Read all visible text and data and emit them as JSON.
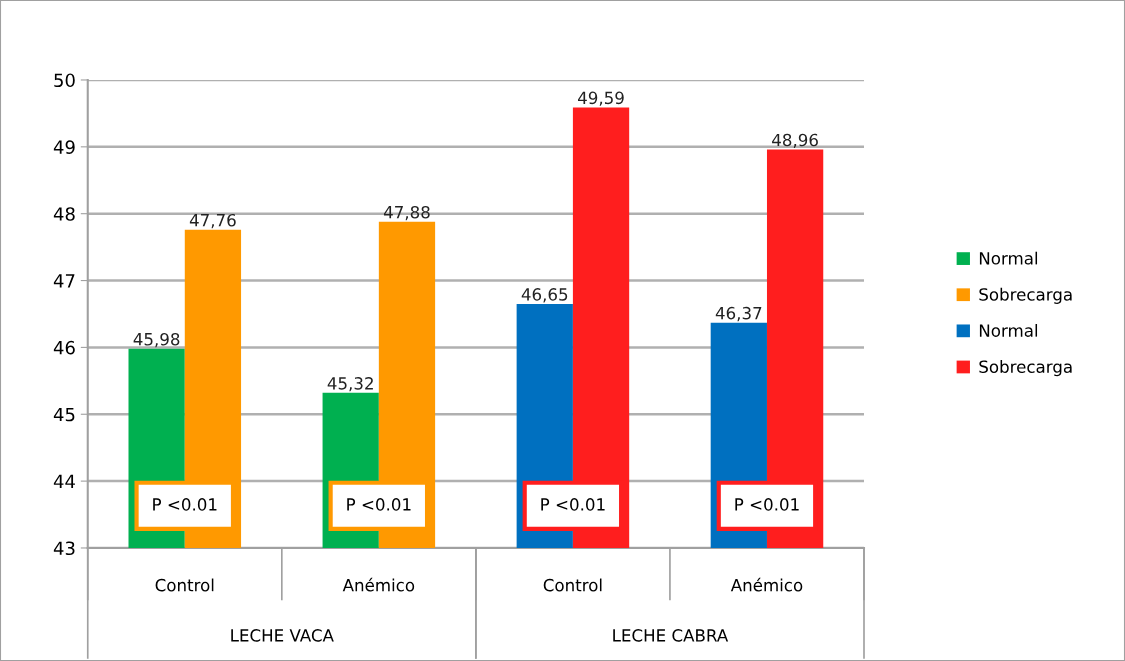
{
  "chart_data": {
    "type": "bar",
    "categories": [
      "Control",
      "Anémico",
      "Control",
      "Anémico"
    ],
    "series": [
      {
        "name": "Normal",
        "color": "#00b050",
        "values": [
          45.98,
          45.32,
          null,
          null
        ],
        "value_labels": [
          "45,98",
          "45,32",
          null,
          null
        ]
      },
      {
        "name": "Sobrecarga",
        "color": "#ff9900",
        "values": [
          47.76,
          47.88,
          null,
          null
        ],
        "value_labels": [
          "47,76",
          "47,88",
          null,
          null
        ]
      },
      {
        "name": "Normal",
        "color": "#0070c0",
        "values": [
          null,
          null,
          46.65,
          46.37
        ],
        "value_labels": [
          null,
          null,
          "46,65",
          "46,37"
        ]
      },
      {
        "name": "Sobrecarga",
        "color": "#ff1e1e",
        "values": [
          null,
          null,
          49.59,
          48.96
        ],
        "value_labels": [
          null,
          null,
          "49,59",
          "48,96"
        ]
      }
    ],
    "ylim": [
      43,
      50
    ],
    "yticks": [
      43,
      44,
      45,
      46,
      47,
      48,
      49,
      50
    ],
    "grid": "y",
    "legend": "right",
    "annotations": [
      "P <0.01",
      "P <0.01",
      "P <0.01",
      "P <0.01",
      "LECHE VACA",
      "LECHE CABRA"
    ]
  }
}
